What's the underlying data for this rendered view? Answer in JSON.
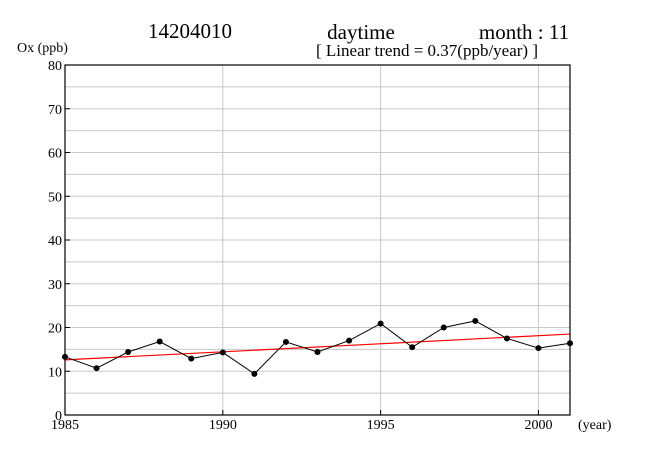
{
  "header": {
    "station": "14204010",
    "period": "daytime",
    "month": "month : 11",
    "trend": "[ Linear trend = 0.37(ppb/year) ]"
  },
  "chart_data": {
    "type": "line",
    "ylabel": "Ox (ppb)",
    "xlabel": "(year)",
    "xlim": [
      1985,
      2001
    ],
    "ylim": [
      0,
      80
    ],
    "x_ticks": [
      1985,
      1990,
      1995,
      2000
    ],
    "y_ticks": [
      0,
      10,
      20,
      30,
      40,
      50,
      60,
      70,
      80
    ],
    "x_grid": [
      1990,
      1995,
      2000
    ],
    "y_grid_step": 5,
    "grid": true,
    "series": [
      {
        "color": "#000000",
        "x": [
          1985,
          1986,
          1987,
          1988,
          1989,
          1990,
          1991,
          1992,
          1993,
          1994,
          1995,
          1996,
          1997,
          1998,
          1999,
          2000,
          2001
        ],
        "y": [
          13.3,
          10.7,
          14.4,
          16.8,
          12.9,
          14.3,
          9.4,
          16.7,
          14.4,
          17.0,
          20.9,
          15.5,
          20.0,
          21.5,
          17.5,
          15.3,
          16.4
        ]
      }
    ],
    "trend_line": {
      "color": "#ff0000",
      "slope": 0.37,
      "x": [
        1985,
        2001
      ],
      "y": [
        12.6,
        18.5
      ]
    }
  }
}
